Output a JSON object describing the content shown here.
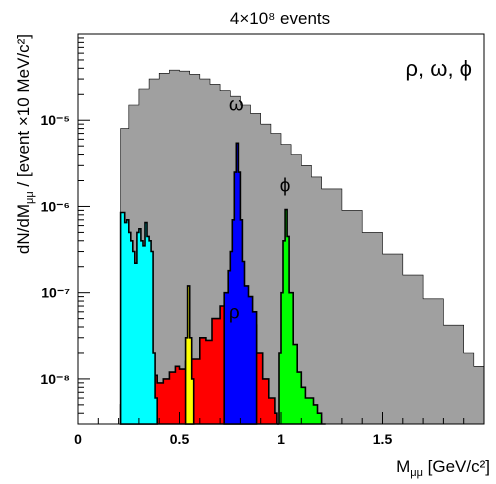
{
  "chart_data": {
    "type": "area",
    "title": "4×10⁸ events",
    "xlabel": "M",
    "xlabel_sub": "μμ",
    "xlabel_unit": " [GeV/c²]",
    "ylabel": "dN/dM",
    "ylabel_sub": "μμ",
    "ylabel_unit": " /  [event ×10 MeV/c²]",
    "annotation": "ρ,  ω,  ϕ",
    "x_scale": "linear",
    "y_scale": "log",
    "xlim": [
      0,
      2.0
    ],
    "ylim": [
      3e-09,
      0.0001
    ],
    "x_ticks": [
      0,
      0.5,
      1,
      1.5
    ],
    "x_tick_labels": [
      "0",
      "0.5",
      "1",
      "1.5"
    ],
    "y_ticks": [
      1e-08,
      1e-07,
      1e-06,
      1e-05
    ],
    "y_tick_labels": [
      "10⁻⁸",
      "10⁻⁷",
      "10⁻⁶",
      "10⁻⁵"
    ],
    "grid": false,
    "colors": {
      "total": "#a0a0a0",
      "rho": "#ff0000",
      "omega": "#0000ff",
      "phi": "#00ff00",
      "eta": "#00ffff",
      "etaprime": "#ffff00"
    },
    "peak_labels": [
      {
        "text": "ω",
        "x": 0.78,
        "y": 1.3e-05
      },
      {
        "text": "ϕ",
        "x": 1.02,
        "y": 1.5e-06
      },
      {
        "text": "ρ",
        "x": 0.77,
        "y": 5e-08
      }
    ],
    "series": [
      {
        "id": "total",
        "x": [
          0.21,
          0.25,
          0.3,
          0.35,
          0.4,
          0.45,
          0.5,
          0.55,
          0.6,
          0.65,
          0.7,
          0.75,
          0.8,
          0.85,
          0.9,
          0.95,
          1.0,
          1.05,
          1.1,
          1.15,
          1.2,
          1.3,
          1.4,
          1.5,
          1.6,
          1.7,
          1.8,
          1.9,
          1.95
        ],
        "y": [
          8e-06,
          1.5e-05,
          2.3e-05,
          3e-05,
          3.5e-05,
          3.8e-05,
          3.7e-05,
          3.4e-05,
          3e-05,
          2.6e-05,
          2.2e-05,
          1.9e-05,
          1.5e-05,
          1.2e-05,
          9e-06,
          7e-06,
          5.2e-06,
          4e-06,
          3e-06,
          2.2e-06,
          1.6e-06,
          9e-07,
          5e-07,
          2.8e-07,
          1.6e-07,
          8.5e-08,
          4.2e-08,
          2e-08,
          1.4e-08
        ]
      },
      {
        "id": "rho",
        "x": [
          0.21,
          0.24,
          0.27,
          0.3,
          0.33,
          0.36,
          0.39,
          0.42,
          0.45,
          0.48,
          0.5,
          0.53,
          0.56,
          0.6,
          0.63,
          0.66,
          0.7,
          0.73,
          0.76,
          0.79,
          0.82,
          0.85,
          0.88,
          0.91,
          0.94,
          0.97,
          0.98
        ],
        "y": [
          5e-09,
          1e-08,
          8e-09,
          1.2e-08,
          1e-08,
          1.1e-08,
          9e-09,
          1e-08,
          1.2e-08,
          1.4e-08,
          1.3e-08,
          1.6e-08,
          1.7e-08,
          3e-08,
          2.8e-08,
          5e-08,
          7e-08,
          8.5e-08,
          1e-07,
          1e-07,
          7e-08,
          4.2e-08,
          2e-08,
          1e-08,
          6e-09,
          4e-09,
          3e-09
        ]
      },
      {
        "id": "omega",
        "x": [
          0.72,
          0.74,
          0.75,
          0.76,
          0.77,
          0.78,
          0.79,
          0.8,
          0.81,
          0.82,
          0.84,
          0.86
        ],
        "y": [
          1e-07,
          1.8e-07,
          3e-07,
          7e-07,
          2.5e-06,
          5.4e-06,
          2.5e-06,
          7e-07,
          2.3e-07,
          1.2e-07,
          9e-08,
          6e-08
        ]
      },
      {
        "id": "phi",
        "x": [
          0.98,
          0.99,
          1.0,
          1.01,
          1.02,
          1.03,
          1.04,
          1.06,
          1.08,
          1.1,
          1.12,
          1.14,
          1.16,
          1.18,
          1.2
        ],
        "y": [
          3e-09,
          2e-08,
          1e-07,
          4e-07,
          9.2e-07,
          4.5e-07,
          1e-07,
          2.5e-08,
          1.2e-08,
          8e-09,
          6e-09,
          6e-09,
          5e-09,
          4e-09,
          3e-09
        ]
      },
      {
        "id": "eta",
        "x": [
          0.21,
          0.22,
          0.23,
          0.24,
          0.25,
          0.26,
          0.27,
          0.28,
          0.29,
          0.3,
          0.31,
          0.32,
          0.33,
          0.34,
          0.35,
          0.36,
          0.37,
          0.38
        ],
        "y": [
          8.5e-07,
          8.5e-07,
          6.5e-07,
          7e-07,
          5e-07,
          4e-07,
          3e-07,
          2.2e-07,
          5e-07,
          5.5e-07,
          4e-07,
          3.5e-07,
          6.5e-07,
          4.5e-07,
          4e-07,
          3e-07,
          2e-08,
          6e-09
        ]
      },
      {
        "id": "etaprime",
        "x": [
          0.53,
          0.54,
          0.55,
          0.56
        ],
        "y": [
          3e-08,
          1.2e-07,
          3e-08,
          1e-08
        ]
      }
    ]
  }
}
